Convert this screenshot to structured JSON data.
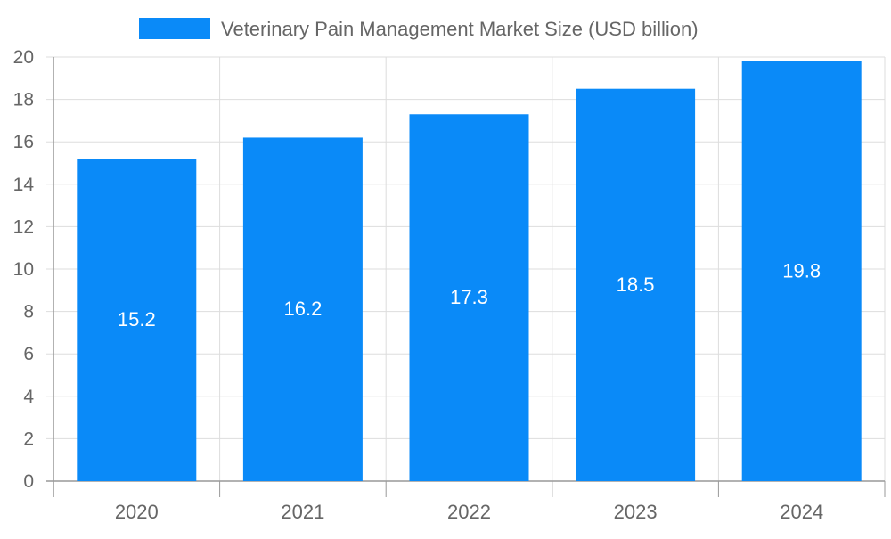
{
  "chart_data": {
    "type": "bar",
    "categories": [
      "2020",
      "2021",
      "2022",
      "2023",
      "2024"
    ],
    "series": [
      {
        "name": "Veterinary Pain Management Market Size (USD billion)",
        "values": [
          15.2,
          16.2,
          17.3,
          18.5,
          19.8
        ],
        "color": "#0a8af8"
      }
    ],
    "ylim": [
      0,
      20
    ],
    "yticks": [
      0,
      2,
      4,
      6,
      8,
      10,
      12,
      14,
      16,
      18,
      20
    ],
    "data_labels": [
      "15.2",
      "16.2",
      "17.3",
      "18.5",
      "19.8"
    ],
    "legend_position": "top-center",
    "grid": true,
    "colors": {
      "grid": "#dddddd",
      "axis": "#999999",
      "tick_text": "#666666",
      "data_label": "#ffffff"
    }
  }
}
